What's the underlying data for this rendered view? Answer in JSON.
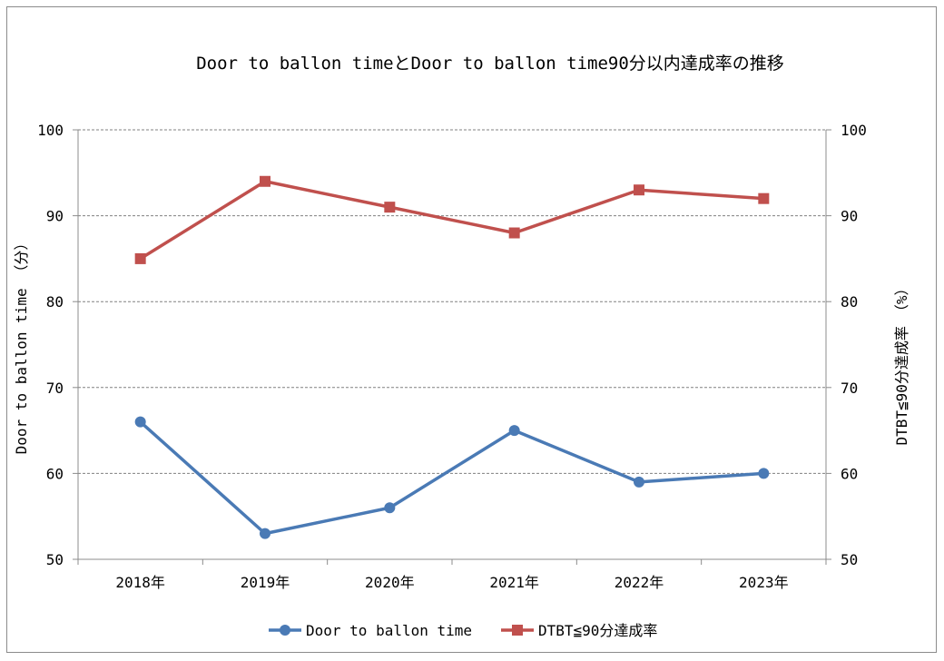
{
  "chart_data": {
    "type": "line",
    "title": "Door to ballon timeとDoor to ballon time90分以内達成率の推移",
    "categories": [
      "2018年",
      "2019年",
      "2020年",
      "2021年",
      "2022年",
      "2023年"
    ],
    "series": [
      {
        "name": "Door to ballon time",
        "axis": "left",
        "color": "#4a7ab5",
        "marker": "circle",
        "values": [
          66,
          53,
          56,
          65,
          59,
          60
        ]
      },
      {
        "name": "DTBT≦90分達成率",
        "axis": "right",
        "color": "#c0504d",
        "marker": "square",
        "values": [
          85,
          94,
          91,
          88,
          93,
          92
        ]
      }
    ],
    "ylabel_left": "Door to ballon time （分）",
    "ylabel_right": "DTBT≦90分達成率　（%）",
    "ylim_left": [
      50,
      100
    ],
    "ylim_right": [
      50,
      100
    ],
    "yticks_left": [
      "100",
      "90",
      "80",
      "70",
      "60",
      "50"
    ],
    "yticks_right": [
      "100",
      "90",
      "80",
      "70",
      "60",
      "50"
    ],
    "grid": true,
    "legend": "bottom"
  }
}
